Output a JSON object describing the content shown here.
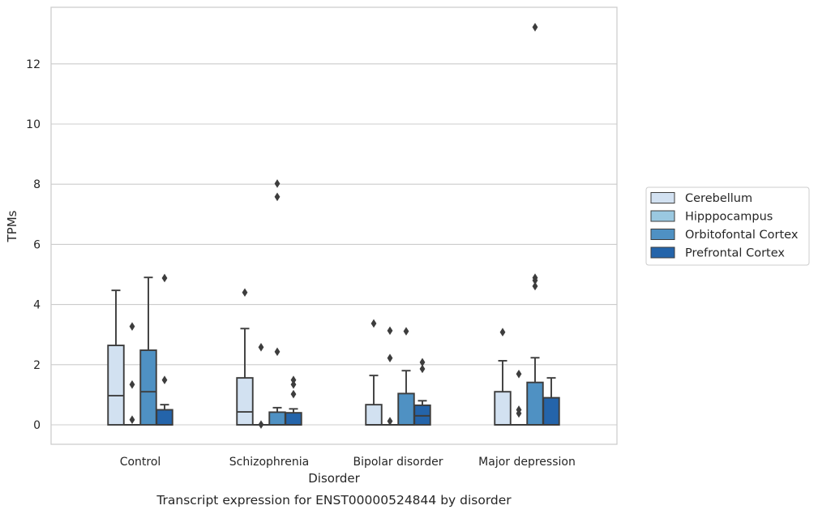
{
  "chart_data": {
    "type": "box",
    "title": "",
    "caption": "Transcript expression for ENST00000524844 by disorder",
    "xlabel": "Disorder",
    "ylabel": "TPMs",
    "ylim": [
      -0.65,
      13.8
    ],
    "yticks": [
      0,
      2,
      4,
      6,
      8,
      10,
      12
    ],
    "grid": "horizontal",
    "legend_position": "right",
    "categories": [
      "Control",
      "Schizophrenia",
      "Bipolar disorder",
      "Major depression"
    ],
    "series": [
      {
        "name": "Cerebellum",
        "color": "#d2e1f1",
        "boxes": [
          {
            "whislo": 0,
            "q1": 0,
            "med": 0.97,
            "q3": 2.64,
            "whishi": 4.47,
            "fliers": []
          },
          {
            "whislo": 0,
            "q1": 0,
            "med": 0.43,
            "q3": 1.56,
            "whishi": 3.2,
            "fliers": [
              4.4
            ]
          },
          {
            "whislo": 0,
            "q1": 0,
            "med": 0,
            "q3": 0.67,
            "whishi": 1.64,
            "fliers": [
              3.37
            ]
          },
          {
            "whislo": 0,
            "q1": 0,
            "med": 0,
            "q3": 1.1,
            "whishi": 2.13,
            "fliers": [
              3.08
            ]
          }
        ]
      },
      {
        "name": "Hipppocampus",
        "color": "#9ac8e0",
        "boxes": [
          {
            "whislo": 0,
            "q1": 0,
            "med": 0,
            "q3": 0,
            "whishi": 0,
            "fliers": [
              0.17,
              1.34,
              3.27
            ]
          },
          {
            "whislo": 0,
            "q1": 0,
            "med": 0,
            "q3": 0,
            "whishi": 0,
            "fliers": [
              0.01,
              2.58
            ]
          },
          {
            "whislo": 0,
            "q1": 0,
            "med": 0,
            "q3": 0,
            "whishi": 0,
            "fliers": [
              0.12,
              2.22,
              3.13
            ]
          },
          {
            "whislo": 0,
            "q1": 0,
            "med": 0,
            "q3": 0,
            "whishi": 0,
            "fliers": [
              0.38,
              0.5,
              1.69
            ]
          }
        ]
      },
      {
        "name": "Orbitofontal Cortex",
        "color": "#4f91c3",
        "boxes": [
          {
            "whislo": 0,
            "q1": 0,
            "med": 1.1,
            "q3": 2.48,
            "whishi": 4.9,
            "fliers": []
          },
          {
            "whislo": 0,
            "q1": 0,
            "med": 0,
            "q3": 0.42,
            "whishi": 0.57,
            "fliers": [
              2.43,
              7.58,
              8.02
            ]
          },
          {
            "whislo": 0,
            "q1": 0,
            "med": 0,
            "q3": 1.04,
            "whishi": 1.8,
            "fliers": [
              3.11
            ]
          },
          {
            "whislo": 0,
            "q1": 0,
            "med": 0,
            "q3": 1.41,
            "whishi": 2.23,
            "fliers": [
              4.61,
              4.8,
              4.89,
              13.22
            ]
          }
        ]
      },
      {
        "name": "Prefrontal Cortex",
        "color": "#2464aa",
        "boxes": [
          {
            "whislo": 0,
            "q1": 0,
            "med": 0,
            "q3": 0.5,
            "whishi": 0.67,
            "fliers": [
              1.49,
              4.88
            ]
          },
          {
            "whislo": 0,
            "q1": 0,
            "med": 0,
            "q3": 0.4,
            "whishi": 0.53,
            "fliers": [
              1.02,
              1.34,
              1.49
            ]
          },
          {
            "whislo": 0,
            "q1": 0,
            "med": 0.3,
            "q3": 0.65,
            "whishi": 0.8,
            "fliers": [
              1.86,
              2.08
            ]
          },
          {
            "whislo": 0,
            "q1": 0,
            "med": 0,
            "q3": 0.9,
            "whishi": 1.56,
            "fliers": []
          }
        ]
      }
    ]
  }
}
